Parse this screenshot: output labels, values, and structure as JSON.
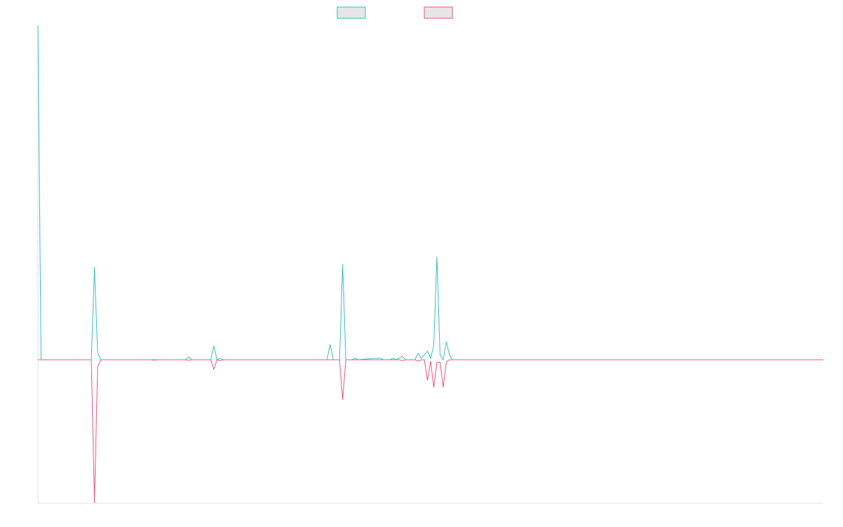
{
  "chart_data": {
    "type": "line",
    "xlim": [
      0,
      250
    ],
    "ylim": [
      -0.3,
      0.7
    ],
    "series": [
      {
        "color": "#3bbfbd",
        "x": [
          0,
          1,
          17,
          18,
          19,
          20,
          47,
          48,
          49,
          55,
          56,
          57,
          58,
          59,
          92,
          93,
          94,
          96,
          97,
          98,
          100,
          101,
          102,
          107,
          109,
          110,
          112,
          113,
          114,
          116,
          117,
          120,
          121,
          122,
          124,
          125,
          126,
          127,
          128,
          129,
          130,
          131,
          132,
          250
        ],
        "values": [
          0.7,
          0,
          0,
          0.194,
          0.015,
          0,
          0,
          0.006,
          0,
          0,
          0.029,
          0,
          0.003,
          0,
          0,
          0.032,
          0,
          0,
          0.2,
          0,
          0,
          0.003,
          0,
          0.003,
          0.003,
          0,
          0,
          0.003,
          0,
          0.007,
          0,
          0,
          0.013,
          0.003,
          0.018,
          0.003,
          0.03,
          0.216,
          0.01,
          0,
          0.038,
          0.01,
          0,
          0
        ]
      },
      {
        "color": "#f0557a",
        "x": [
          0,
          17,
          18,
          19,
          20,
          36,
          37,
          38,
          47,
          48,
          49,
          55,
          56,
          57,
          58,
          59,
          96,
          97,
          98,
          115,
          116,
          117,
          120,
          121,
          122,
          123,
          124,
          125,
          126,
          127,
          128,
          129,
          130,
          131,
          250
        ],
        "values": [
          0,
          0,
          -0.3,
          -0.015,
          0,
          0,
          -0.001,
          0,
          0,
          -0.001,
          0,
          0,
          -0.02,
          0,
          -0.002,
          0,
          0,
          -0.084,
          0,
          0,
          -0.002,
          0,
          0,
          -0.003,
          0,
          0,
          -0.043,
          -0.003,
          -0.058,
          -0.005,
          -0.005,
          -0.058,
          -0.005,
          0,
          0
        ]
      }
    ]
  }
}
